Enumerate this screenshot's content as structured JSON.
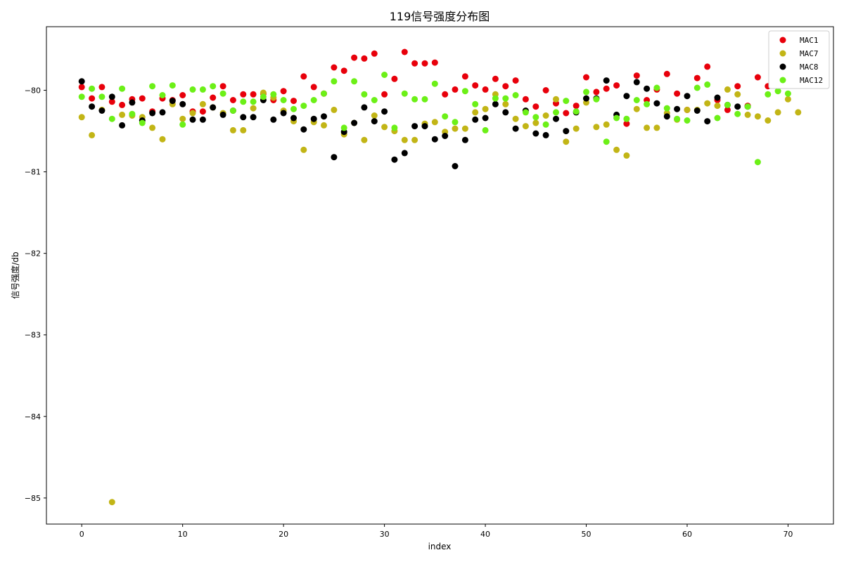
{
  "chart_data": {
    "type": "scatter",
    "title": "119信号强度分布图",
    "xlabel": "index",
    "ylabel": "信号强度/db",
    "xlim": [
      -3.5,
      74.5
    ],
    "ylim": [
      -85.32,
      -79.22
    ],
    "x_ticks": [
      0,
      10,
      20,
      30,
      40,
      50,
      60,
      70
    ],
    "y_ticks": [
      -85,
      -84,
      -83,
      -82,
      -81,
      -80
    ],
    "grid": false,
    "legend_position": "top-right",
    "series": [
      {
        "name": "MAC1",
        "color": "#e8000b",
        "points": [
          [
            0,
            -79.96
          ],
          [
            1,
            -80.1
          ],
          [
            2,
            -79.96
          ],
          [
            3,
            -80.14
          ],
          [
            4,
            -80.18
          ],
          [
            5,
            -80.11
          ],
          [
            6,
            -80.1
          ],
          [
            7,
            -80.26
          ],
          [
            8,
            -80.1
          ],
          [
            9,
            -80.12
          ],
          [
            10,
            -80.06
          ],
          [
            11,
            -80.26
          ],
          [
            12,
            -80.26
          ],
          [
            13,
            -80.09
          ],
          [
            14,
            -79.95
          ],
          [
            15,
            -80.12
          ],
          [
            16,
            -80.05
          ],
          [
            17,
            -80.05
          ],
          [
            18,
            -80.04
          ],
          [
            19,
            -80.12
          ],
          [
            20,
            -80.01
          ],
          [
            21,
            -80.13
          ],
          [
            22,
            -79.83
          ],
          [
            23,
            -79.96
          ],
          [
            24,
            -80.04
          ],
          [
            25,
            -79.72
          ],
          [
            26,
            -79.76
          ],
          [
            27,
            -79.6
          ],
          [
            28,
            -79.61
          ],
          [
            29,
            -79.55
          ],
          [
            30,
            -80.05
          ],
          [
            31,
            -79.86
          ],
          [
            32,
            -79.53
          ],
          [
            33,
            -79.67
          ],
          [
            34,
            -79.67
          ],
          [
            35,
            -79.66
          ],
          [
            36,
            -80.05
          ],
          [
            37,
            -79.99
          ],
          [
            38,
            -79.83
          ],
          [
            39,
            -79.94
          ],
          [
            40,
            -79.99
          ],
          [
            41,
            -79.86
          ],
          [
            42,
            -79.95
          ],
          [
            43,
            -79.88
          ],
          [
            44,
            -80.11
          ],
          [
            45,
            -80.2
          ],
          [
            46,
            -80.0
          ],
          [
            47,
            -80.16
          ],
          [
            48,
            -80.28
          ],
          [
            49,
            -80.19
          ],
          [
            50,
            -79.84
          ],
          [
            51,
            -80.02
          ],
          [
            52,
            -79.98
          ],
          [
            53,
            -79.94
          ],
          [
            54,
            -80.41
          ],
          [
            55,
            -79.82
          ],
          [
            56,
            -80.12
          ],
          [
            57,
            -79.99
          ],
          [
            58,
            -79.8
          ],
          [
            59,
            -80.04
          ],
          [
            60,
            -80.24
          ],
          [
            61,
            -79.85
          ],
          [
            62,
            -79.71
          ],
          [
            63,
            -80.12
          ],
          [
            64,
            -80.24
          ],
          [
            65,
            -79.95
          ],
          [
            66,
            -80.19
          ],
          [
            67,
            -79.84
          ],
          [
            68,
            -79.95
          ]
        ]
      },
      {
        "name": "MAC7",
        "color": "#c2b516",
        "points": [
          [
            0,
            -80.33
          ],
          [
            1,
            -80.55
          ],
          [
            2,
            -80.24
          ],
          [
            3,
            -85.05
          ],
          [
            4,
            -80.3
          ],
          [
            5,
            -80.31
          ],
          [
            6,
            -80.33
          ],
          [
            7,
            -80.46
          ],
          [
            8,
            -80.6
          ],
          [
            9,
            -80.17
          ],
          [
            10,
            -80.35
          ],
          [
            11,
            -80.28
          ],
          [
            12,
            -80.17
          ],
          [
            13,
            -80.21
          ],
          [
            14,
            -80.28
          ],
          [
            15,
            -80.49
          ],
          [
            16,
            -80.49
          ],
          [
            17,
            -80.22
          ],
          [
            18,
            -80.03
          ],
          [
            19,
            -80.09
          ],
          [
            20,
            -80.25
          ],
          [
            21,
            -80.38
          ],
          [
            22,
            -80.73
          ],
          [
            23,
            -80.39
          ],
          [
            24,
            -80.43
          ],
          [
            25,
            -80.24
          ],
          [
            26,
            -80.54
          ],
          [
            27,
            -80.4
          ],
          [
            28,
            -80.61
          ],
          [
            29,
            -80.31
          ],
          [
            30,
            -80.45
          ],
          [
            31,
            -80.5
          ],
          [
            32,
            -80.61
          ],
          [
            33,
            -80.61
          ],
          [
            34,
            -80.41
          ],
          [
            35,
            -80.39
          ],
          [
            36,
            -80.51
          ],
          [
            37,
            -80.47
          ],
          [
            38,
            -80.47
          ],
          [
            39,
            -80.27
          ],
          [
            40,
            -80.23
          ],
          [
            41,
            -80.05
          ],
          [
            42,
            -80.17
          ],
          [
            43,
            -80.35
          ],
          [
            44,
            -80.44
          ],
          [
            45,
            -80.4
          ],
          [
            46,
            -80.31
          ],
          [
            47,
            -80.11
          ],
          [
            48,
            -80.63
          ],
          [
            49,
            -80.47
          ],
          [
            50,
            -80.15
          ],
          [
            51,
            -80.45
          ],
          [
            52,
            -80.42
          ],
          [
            53,
            -80.73
          ],
          [
            54,
            -80.8
          ],
          [
            55,
            -80.23
          ],
          [
            56,
            -80.46
          ],
          [
            57,
            -80.46
          ],
          [
            58,
            -80.28
          ],
          [
            59,
            -80.36
          ],
          [
            60,
            -80.24
          ],
          [
            61,
            -80.24
          ],
          [
            62,
            -80.16
          ],
          [
            63,
            -80.19
          ],
          [
            64,
            -79.99
          ],
          [
            65,
            -80.05
          ],
          [
            66,
            -80.3
          ],
          [
            67,
            -80.32
          ],
          [
            68,
            -80.37
          ],
          [
            69,
            -80.27
          ],
          [
            70,
            -80.11
          ],
          [
            71,
            -80.27
          ]
        ]
      },
      {
        "name": "MAC8",
        "color": "#000000",
        "points": [
          [
            0,
            -79.89
          ],
          [
            1,
            -80.2
          ],
          [
            2,
            -80.25
          ],
          [
            3,
            -80.08
          ],
          [
            4,
            -80.43
          ],
          [
            5,
            -80.15
          ],
          [
            6,
            -80.37
          ],
          [
            7,
            -80.28
          ],
          [
            8,
            -80.27
          ],
          [
            9,
            -80.13
          ],
          [
            10,
            -80.17
          ],
          [
            11,
            -80.36
          ],
          [
            12,
            -80.36
          ],
          [
            13,
            -80.21
          ],
          [
            14,
            -80.3
          ],
          [
            15,
            -80.25
          ],
          [
            16,
            -80.33
          ],
          [
            17,
            -80.33
          ],
          [
            18,
            -80.12
          ],
          [
            19,
            -80.36
          ],
          [
            20,
            -80.28
          ],
          [
            21,
            -80.34
          ],
          [
            22,
            -80.48
          ],
          [
            23,
            -80.35
          ],
          [
            24,
            -80.32
          ],
          [
            25,
            -80.82
          ],
          [
            26,
            -80.51
          ],
          [
            27,
            -80.4
          ],
          [
            28,
            -80.21
          ],
          [
            29,
            -80.38
          ],
          [
            30,
            -80.26
          ],
          [
            31,
            -80.85
          ],
          [
            32,
            -80.77
          ],
          [
            33,
            -80.44
          ],
          [
            34,
            -80.44
          ],
          [
            35,
            -80.6
          ],
          [
            36,
            -80.56
          ],
          [
            37,
            -80.93
          ],
          [
            38,
            -80.61
          ],
          [
            39,
            -80.36
          ],
          [
            40,
            -80.34
          ],
          [
            41,
            -80.17
          ],
          [
            42,
            -80.27
          ],
          [
            43,
            -80.47
          ],
          [
            44,
            -80.25
          ],
          [
            45,
            -80.53
          ],
          [
            46,
            -80.55
          ],
          [
            47,
            -80.35
          ],
          [
            48,
            -80.5
          ],
          [
            49,
            -80.27
          ],
          [
            50,
            -80.1
          ],
          [
            51,
            -80.1
          ],
          [
            52,
            -79.88
          ],
          [
            53,
            -80.3
          ],
          [
            54,
            -80.07
          ],
          [
            55,
            -79.9
          ],
          [
            56,
            -79.98
          ],
          [
            57,
            -80.16
          ],
          [
            58,
            -80.32
          ],
          [
            59,
            -80.23
          ],
          [
            60,
            -80.07
          ],
          [
            61,
            -80.25
          ],
          [
            62,
            -80.38
          ],
          [
            63,
            -80.09
          ],
          [
            64,
            -80.18
          ],
          [
            65,
            -80.2
          ],
          [
            66,
            -80.2
          ]
        ]
      },
      {
        "name": "MAC12",
        "color": "#6cf017",
        "points": [
          [
            0,
            -80.08
          ],
          [
            1,
            -79.98
          ],
          [
            2,
            -80.08
          ],
          [
            3,
            -80.35
          ],
          [
            4,
            -79.98
          ],
          [
            5,
            -80.29
          ],
          [
            6,
            -80.4
          ],
          [
            7,
            -79.95
          ],
          [
            8,
            -80.06
          ],
          [
            9,
            -79.94
          ],
          [
            10,
            -80.42
          ],
          [
            11,
            -79.99
          ],
          [
            12,
            -79.99
          ],
          [
            13,
            -79.95
          ],
          [
            14,
            -80.04
          ],
          [
            15,
            -80.25
          ],
          [
            16,
            -80.14
          ],
          [
            17,
            -80.14
          ],
          [
            18,
            -80.08
          ],
          [
            19,
            -80.05
          ],
          [
            20,
            -80.12
          ],
          [
            21,
            -80.23
          ],
          [
            22,
            -80.19
          ],
          [
            23,
            -80.12
          ],
          [
            24,
            -80.04
          ],
          [
            25,
            -79.89
          ],
          [
            26,
            -80.46
          ],
          [
            27,
            -79.89
          ],
          [
            28,
            -80.05
          ],
          [
            29,
            -80.12
          ],
          [
            30,
            -79.81
          ],
          [
            31,
            -80.46
          ],
          [
            32,
            -80.04
          ],
          [
            33,
            -80.11
          ],
          [
            34,
            -80.11
          ],
          [
            35,
            -79.92
          ],
          [
            36,
            -80.32
          ],
          [
            37,
            -80.39
          ],
          [
            38,
            -80.01
          ],
          [
            39,
            -80.17
          ],
          [
            40,
            -80.49
          ],
          [
            41,
            -80.1
          ],
          [
            42,
            -80.1
          ],
          [
            43,
            -80.06
          ],
          [
            44,
            -80.27
          ],
          [
            45,
            -80.33
          ],
          [
            46,
            -80.42
          ],
          [
            47,
            -80.27
          ],
          [
            48,
            -80.13
          ],
          [
            49,
            -80.26
          ],
          [
            50,
            -80.02
          ],
          [
            51,
            -80.11
          ],
          [
            52,
            -80.63
          ],
          [
            53,
            -80.34
          ],
          [
            54,
            -80.35
          ],
          [
            55,
            -80.12
          ],
          [
            56,
            -80.17
          ],
          [
            57,
            -79.97
          ],
          [
            58,
            -80.22
          ],
          [
            59,
            -80.35
          ],
          [
            60,
            -80.37
          ],
          [
            61,
            -79.97
          ],
          [
            62,
            -79.93
          ],
          [
            63,
            -80.34
          ],
          [
            64,
            -80.18
          ],
          [
            65,
            -80.29
          ],
          [
            66,
            -80.2
          ],
          [
            67,
            -80.88
          ],
          [
            68,
            -80.05
          ],
          [
            69,
            -80.01
          ],
          [
            70,
            -80.04
          ]
        ]
      }
    ]
  }
}
